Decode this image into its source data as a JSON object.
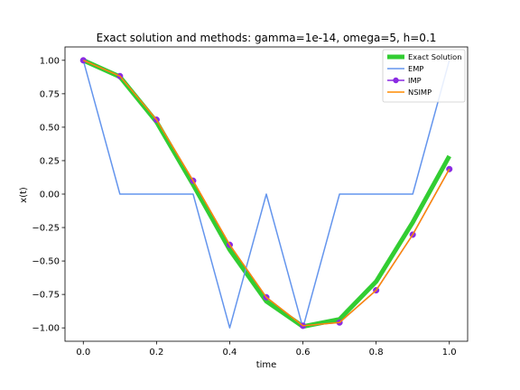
{
  "chart_data": {
    "type": "line",
    "title": "Exact solution and methods: gamma=1e-14, omega=5, h=0.1",
    "xlabel": "time",
    "ylabel": "x(t)",
    "xlim": [
      -0.05,
      1.05
    ],
    "ylim": [
      -1.1,
      1.1
    ],
    "x_ticks": [
      0.0,
      0.2,
      0.4,
      0.6,
      0.8,
      1.0
    ],
    "x_tick_labels": [
      "0.0",
      "0.2",
      "0.4",
      "0.6",
      "0.8",
      "1.0"
    ],
    "y_ticks": [
      1.0,
      0.75,
      0.5,
      0.25,
      0.0,
      -0.25,
      -0.5,
      -0.75,
      -1.0
    ],
    "y_tick_labels": [
      "1.00",
      "0.75",
      "0.50",
      "0.25",
      "0.00",
      "−0.25",
      "−0.50",
      "−0.75",
      "−1.00"
    ],
    "grid": false,
    "legend_position": "top-right",
    "series": [
      {
        "name": "Exact Solution",
        "color": "#32cd32",
        "x": [
          0.0,
          0.1,
          0.2,
          0.3,
          0.4,
          0.5,
          0.6,
          0.7,
          0.8,
          0.9,
          1.0
        ],
        "y": [
          1.0,
          0.877,
          0.54,
          0.071,
          -0.416,
          -0.801,
          -0.99,
          -0.936,
          -0.654,
          -0.211,
          0.284
        ]
      },
      {
        "name": "EMP",
        "color": "#6495ed",
        "x": [
          0.0,
          0.1,
          0.2,
          0.3,
          0.4,
          0.5,
          0.6,
          0.7,
          0.8,
          0.9,
          1.0
        ],
        "y": [
          1.0,
          0.0,
          0.0,
          0.0,
          -1.0,
          0.0,
          -1.0,
          0.0,
          0.0,
          0.0,
          1.0
        ]
      },
      {
        "name": "IMP",
        "color": "#8a2be2",
        "x": [
          0.0,
          0.1,
          0.2,
          0.3,
          0.4,
          0.5,
          0.6,
          0.7,
          0.8,
          0.9,
          1.0
        ],
        "y": [
          1.0,
          0.882,
          0.556,
          0.1,
          -0.379,
          -0.771,
          -0.984,
          -0.96,
          -0.719,
          -0.303,
          0.187
        ]
      },
      {
        "name": "NSIMP",
        "color": "#ff8c00",
        "x": [
          0.0,
          0.1,
          0.2,
          0.3,
          0.4,
          0.5,
          0.6,
          0.7,
          0.8,
          0.9,
          1.0
        ],
        "y": [
          1.0,
          0.882,
          0.556,
          0.1,
          -0.379,
          -0.771,
          -0.984,
          -0.96,
          -0.719,
          -0.303,
          0.187
        ]
      }
    ]
  }
}
